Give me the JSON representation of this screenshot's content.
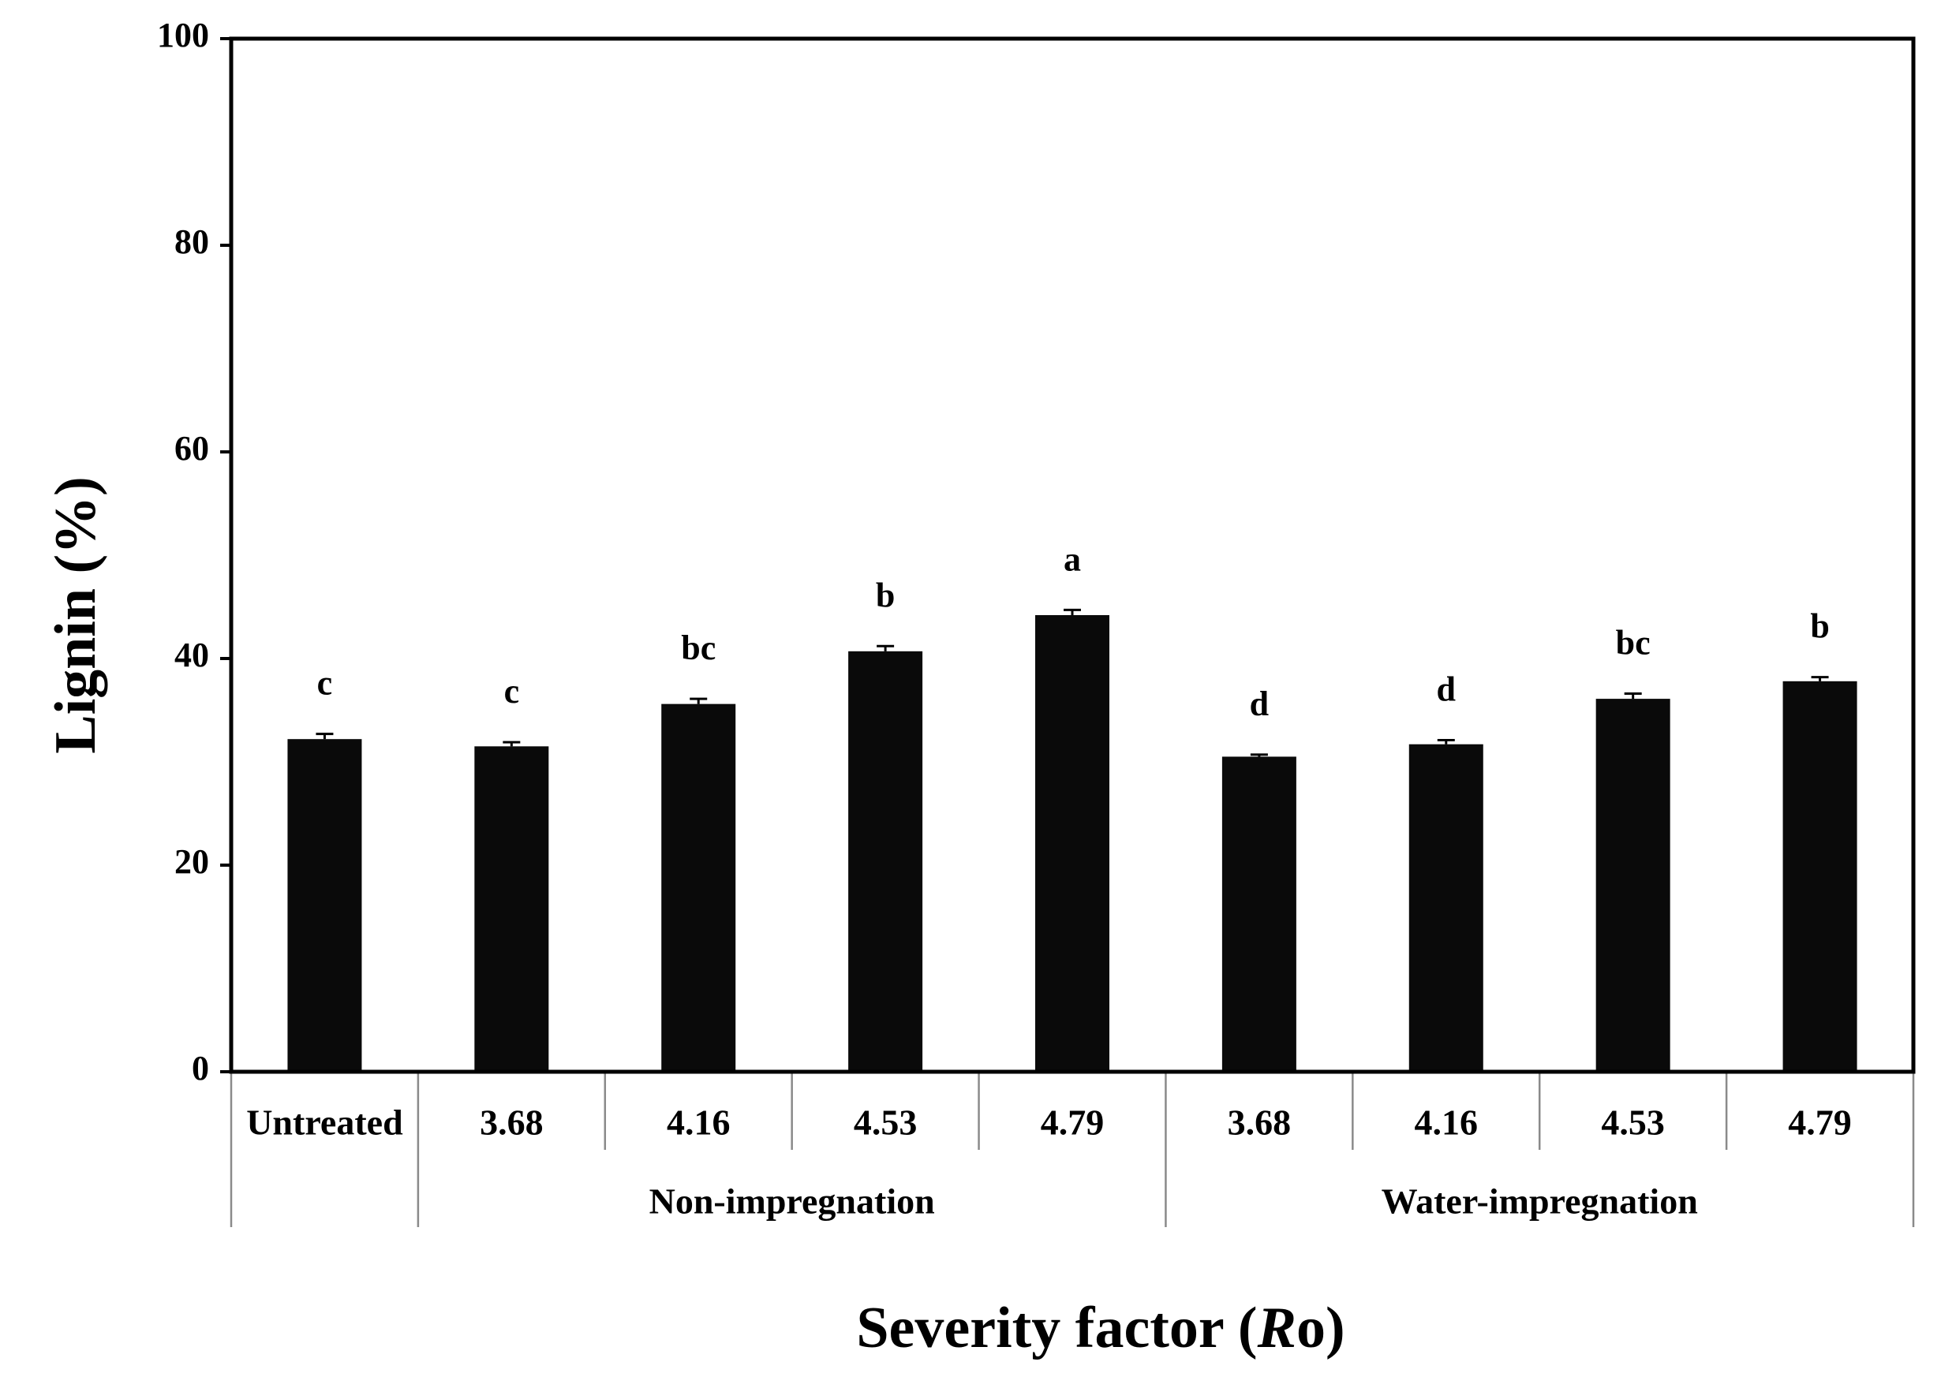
{
  "chart_data": {
    "type": "bar",
    "xlabel": "Severity factor (Ro)",
    "xlabel_parts": [
      "Severity factor (",
      "R",
      "o)"
    ],
    "ylabel": "Lignin (%)",
    "ylim": [
      0,
      100
    ],
    "yticks": [
      0,
      20,
      40,
      60,
      80,
      100
    ],
    "grid": false,
    "legend": "none",
    "bar_color": "#0a0a0a",
    "categories": [
      "Untreated",
      "3.68",
      "4.16",
      "4.53",
      "4.79",
      "3.68",
      "4.16",
      "4.53",
      "4.79"
    ],
    "groups": [
      {
        "label": "",
        "start": 0,
        "count": 1
      },
      {
        "label": "Non-impregnation",
        "start": 1,
        "count": 4
      },
      {
        "label": "Water-impregnation",
        "start": 5,
        "count": 4
      }
    ],
    "values": [
      32.2,
      31.5,
      35.6,
      40.7,
      44.2,
      30.5,
      31.7,
      36.1,
      37.8
    ],
    "errors": [
      0.5,
      0.4,
      0.5,
      0.5,
      0.5,
      0.2,
      0.4,
      0.5,
      0.4
    ],
    "significance": [
      "c",
      "c",
      "bc",
      "b",
      "a",
      "d",
      "d",
      "bc",
      "b"
    ]
  }
}
